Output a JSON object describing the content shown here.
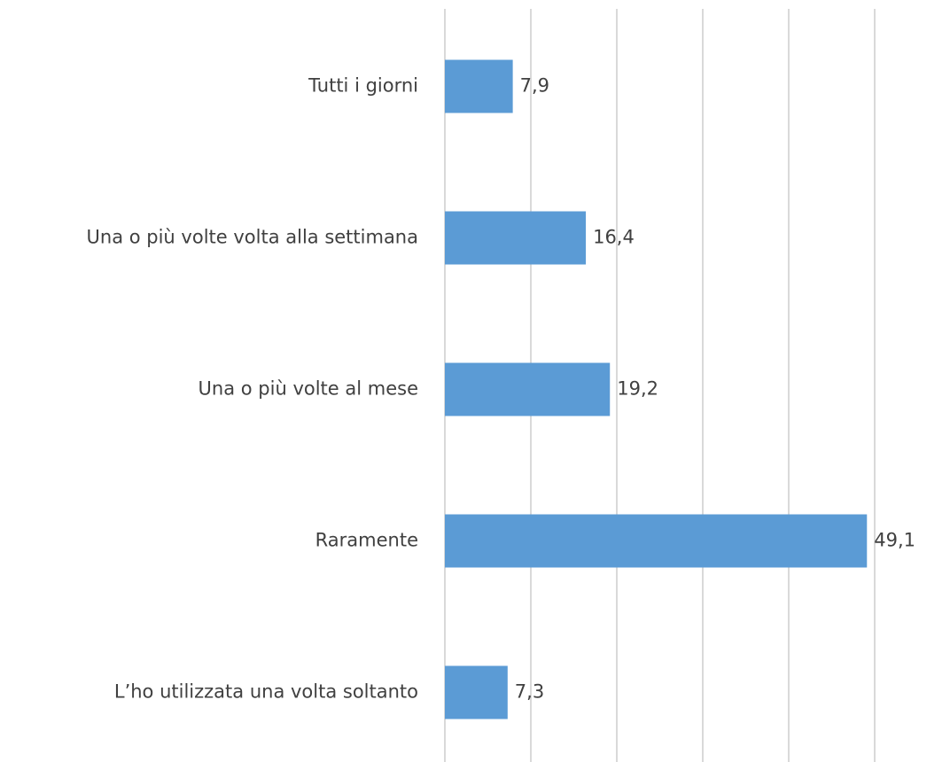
{
  "chart_data": {
    "type": "barh",
    "categories": [
      "Tutti i giorni",
      "Una o più volte volta alla settimana",
      "Una o più volte al mese",
      "Raramente",
      "L’ho utilizzata una volta soltanto"
    ],
    "values": [
      7.9,
      16.4,
      19.2,
      49.1,
      7.3
    ],
    "value_labels": [
      "7,9",
      "16,4",
      "19,2",
      "49,1",
      "7,3"
    ],
    "color": "#5b9bd5",
    "xlim": [
      0,
      50
    ],
    "xticks": [
      0,
      10,
      20,
      30,
      40,
      50
    ],
    "grid": true
  }
}
